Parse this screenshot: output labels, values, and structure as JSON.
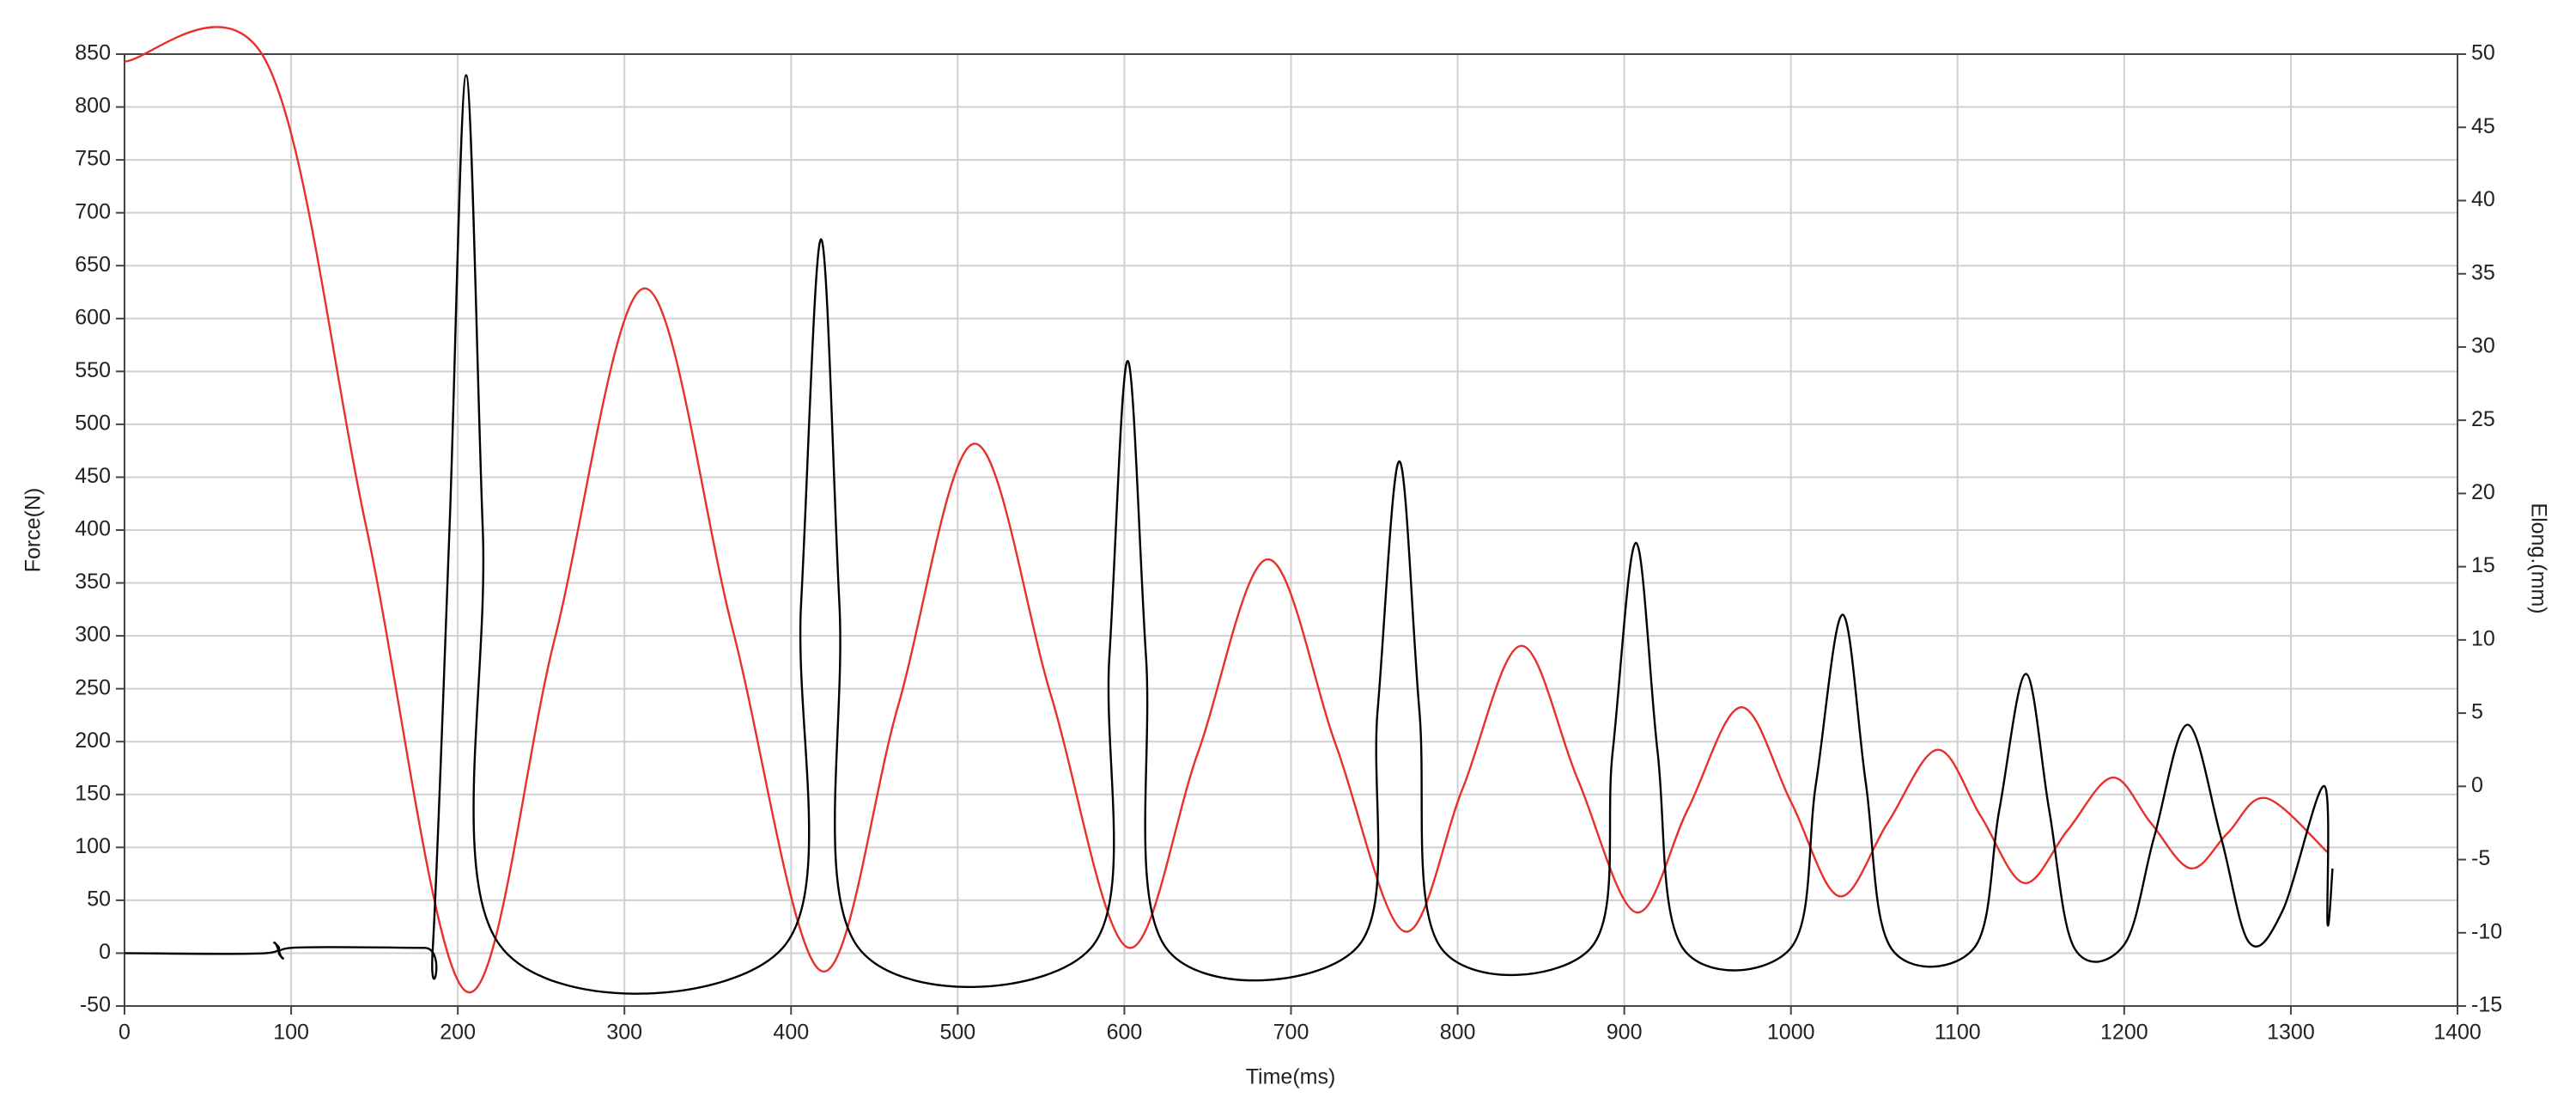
{
  "chart_data": {
    "type": "line",
    "xlabel": "Time(ms)",
    "ylabel": "Force(N)",
    "y2label": "Elong.(mm)",
    "xlim": [
      0,
      1400
    ],
    "xticks": [
      0,
      100,
      200,
      300,
      400,
      500,
      600,
      700,
      800,
      900,
      1000,
      1100,
      1200,
      1300,
      1400
    ],
    "ylim": [
      -50,
      850
    ],
    "yticks": [
      -50,
      0,
      50,
      100,
      150,
      200,
      250,
      300,
      350,
      400,
      450,
      500,
      550,
      600,
      650,
      700,
      750,
      800,
      850
    ],
    "y2lim": [
      -15,
      50
    ],
    "y2ticks": [
      -15,
      -10,
      -5,
      0,
      5,
      10,
      15,
      20,
      25,
      30,
      35,
      40,
      45,
      50
    ],
    "grid": true,
    "series": [
      {
        "color": "#000000",
        "axis": "y",
        "x": [
          0,
          85,
          90,
          95,
          100,
          180,
          185,
          195,
          205,
          215,
          225,
          395,
          406,
          418,
          429,
          440,
          580,
          591,
          602,
          613,
          625,
          740,
          752,
          765,
          777,
          790,
          880,
          893,
          907,
          920,
          935,
          1000,
          1015,
          1031,
          1045,
          1060,
          1110,
          1125,
          1141,
          1155,
          1170,
          1200,
          1218,
          1238,
          1258,
          1275,
          1295,
          1320,
          1322,
          1325
        ],
        "values": [
          0,
          0,
          10,
          -5,
          5,
          5,
          5,
          400,
          830,
          400,
          8,
          5,
          330,
          675,
          330,
          6,
          5,
          280,
          560,
          280,
          5,
          6,
          230,
          465,
          230,
          5,
          5,
          190,
          388,
          190,
          5,
          5,
          160,
          320,
          160,
          5,
          5,
          135,
          264,
          135,
          5,
          8,
          110,
          216,
          110,
          10,
          40,
          158,
          28,
          80
        ]
      },
      {
        "color": "#e8302a",
        "axis": "y2",
        "x": [
          0,
          85,
          145,
          205,
          258,
          312,
          365,
          418,
          464,
          510,
          556,
          602,
          644,
          686,
          727,
          768,
          803,
          838,
          872,
          907,
          938,
          970,
          1000,
          1029,
          1058,
          1088,
          1114,
          1140,
          1166,
          1193,
          1216,
          1240,
          1262,
          1285,
          1322
        ],
        "values": [
          49.5,
          49.5,
          17.75,
          -14,
          10,
          34,
          10.7,
          -12.6,
          5.4,
          23.4,
          6.2,
          -11,
          2.25,
          15.5,
          2.8,
          -9.9,
          -0.15,
          9.6,
          0.5,
          -8.6,
          -1.6,
          5.4,
          -1.05,
          -7.5,
          -2.5,
          2.5,
          -2.05,
          -6.6,
          -3,
          0.6,
          -2.5,
          -5.6,
          -3.2,
          -0.8,
          -4.5
        ]
      }
    ]
  }
}
